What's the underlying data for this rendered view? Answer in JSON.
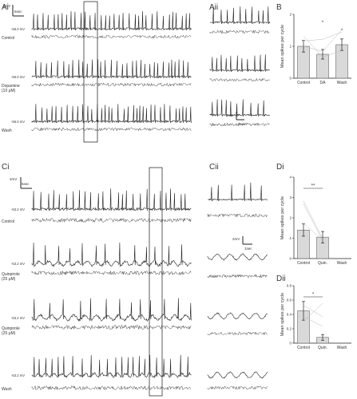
{
  "panels": {
    "ai": "Ai",
    "aii": "Aii",
    "b": "B",
    "ci": "Ci",
    "cii": "Cii",
    "di": "Di",
    "dii": "Dii"
  },
  "scale_bars": {
    "ai_v": "2mV",
    "ai_t": "5sec",
    "aii_v": "2mV",
    "aii_t": "1sec",
    "ci_v": "2mV",
    "ci_t": "5sec",
    "cii_v": "2mV",
    "cii_t": "1sec"
  },
  "traces_a": [
    {
      "label": "Control",
      "potential": "-56.0 mV"
    },
    {
      "label": "Dopamine\n(10 μM)",
      "potential": "-56.0 mV"
    },
    {
      "label": "Wash",
      "potential": "-56.0 mV"
    }
  ],
  "traces_c": [
    {
      "label": "Control",
      "potential": "-53.2 mV"
    },
    {
      "label": "Quinpirole\n(25 μM)",
      "potential": "-53.2 mV"
    },
    {
      "label": "Quinpirole\n(25 μM)",
      "potential": "-53.2 mV"
    },
    {
      "label": "Wash",
      "potential": "-53.2 mV"
    }
  ],
  "chart_data": [
    {
      "panel": "B",
      "type": "bar",
      "categories": [
        "Control",
        "DA",
        "Wash"
      ],
      "values": [
        1.0,
        0.75,
        1.05
      ],
      "errors": [
        0.18,
        0.15,
        0.18
      ],
      "ylabel": "Mean spikes per cycle",
      "ylim": [
        0,
        2
      ],
      "yticks": [
        "0",
        "1",
        "2"
      ],
      "significance": [
        "*",
        "*"
      ],
      "bar_color": "#d9d9d9"
    },
    {
      "panel": "Di",
      "type": "bar",
      "categories": [
        "Control",
        "Quin.",
        "Wash"
      ],
      "values": [
        1.4,
        1.05,
        null
      ],
      "errors": [
        0.3,
        0.28,
        null
      ],
      "ylabel": "Mean spikes per cycle",
      "ylim": [
        0,
        4
      ],
      "yticks": [
        "0",
        "1",
        "2",
        "3",
        "4"
      ],
      "significance": [
        "**"
      ],
      "bar_color": "#d9d9d9"
    },
    {
      "panel": "Dii",
      "type": "bar",
      "categories": [
        "Control",
        "Quin.",
        "Wash"
      ],
      "values": [
        0.45,
        0.08,
        null
      ],
      "errors": [
        0.13,
        0.04,
        null
      ],
      "ylabel": "Mean spikes per cycle",
      "ylim": [
        0,
        0.8
      ],
      "yticks": [
        "0",
        "0.2",
        "0.4",
        "0.6",
        "0.8"
      ],
      "significance": [
        "*"
      ],
      "bar_color": "#d9d9d9"
    }
  ]
}
